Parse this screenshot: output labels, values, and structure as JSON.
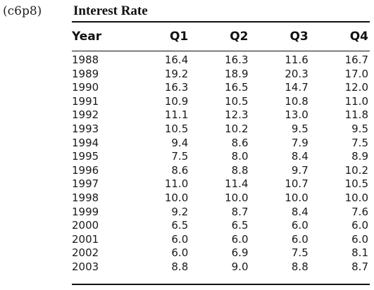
{
  "reference": "(c6p8)",
  "title": "Interest Rate",
  "columns": [
    "Year",
    "Q1",
    "Q2",
    "Q3",
    "Q4"
  ],
  "rows": [
    [
      "1988",
      "16.4",
      "16.3",
      "11.6",
      "16.7"
    ],
    [
      "1989",
      "19.2",
      "18.9",
      "20.3",
      "17.0"
    ],
    [
      "1990",
      "16.3",
      "16.5",
      "14.7",
      "12.0"
    ],
    [
      "1991",
      "10.9",
      "10.5",
      "10.8",
      "11.0"
    ],
    [
      "1992",
      "11.1",
      "12.3",
      "13.0",
      "11.8"
    ],
    [
      "1993",
      "10.5",
      "10.2",
      "9.5",
      "9.5"
    ],
    [
      "1994",
      "9.4",
      "8.6",
      "7.9",
      "7.5"
    ],
    [
      "1995",
      "7.5",
      "8.0",
      "8.4",
      "8.9"
    ],
    [
      "1996",
      "8.6",
      "8.8",
      "9.7",
      "10.2"
    ],
    [
      "1997",
      "11.0",
      "11.4",
      "10.7",
      "10.5"
    ],
    [
      "1998",
      "10.0",
      "10.0",
      "10.0",
      "10.0"
    ],
    [
      "1999",
      "9.2",
      "8.7",
      "8.4",
      "7.6"
    ],
    [
      "2000",
      "6.5",
      "6.5",
      "6.0",
      "6.0"
    ],
    [
      "2001",
      "6.0",
      "6.0",
      "6.0",
      "6.0"
    ],
    [
      "2002",
      "6.0",
      "6.9",
      "7.5",
      "8.1"
    ],
    [
      "2003",
      "8.8",
      "9.0",
      "8.8",
      "8.7"
    ]
  ]
}
